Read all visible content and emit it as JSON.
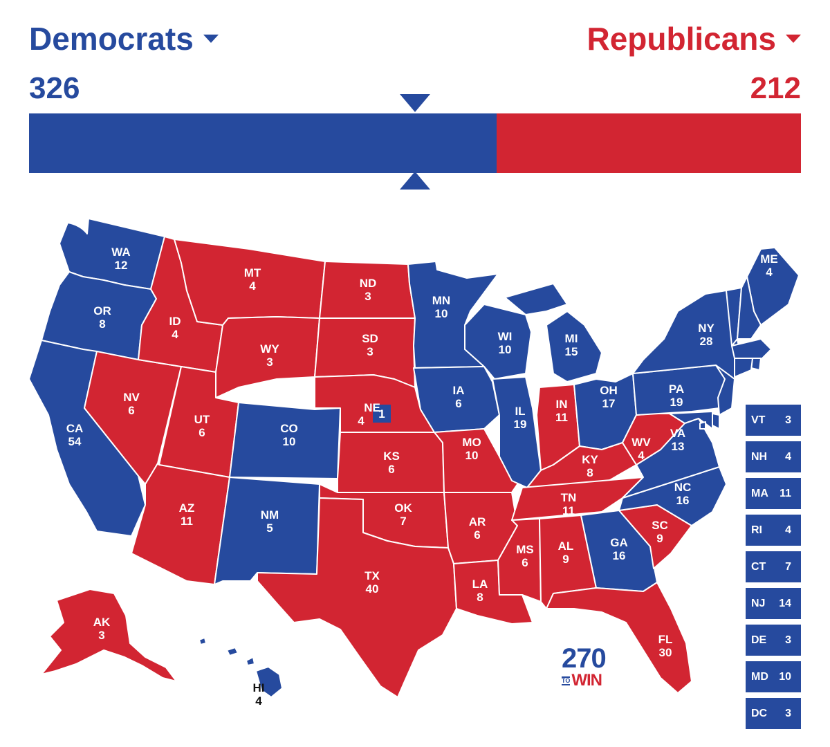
{
  "colors": {
    "dem": "#264a9e",
    "rep": "#d22532",
    "border": "#ffffff",
    "marker": "#264a9e",
    "logo_blue": "#264a9e",
    "logo_red": "#d22532"
  },
  "header": {
    "dem_name": "Democrats",
    "rep_name": "Republicans",
    "dem_total": "326",
    "rep_total": "212",
    "dem_icon": "caret-down-icon",
    "rep_icon": "caret-down-icon"
  },
  "ev_bar": {
    "dem_votes": 326,
    "rep_votes": 212,
    "total_votes": 538,
    "majority_marker": 270
  },
  "states": {
    "WA": {
      "abbr": "WA",
      "ev": "12",
      "party": "dem"
    },
    "OR": {
      "abbr": "OR",
      "ev": "8",
      "party": "dem"
    },
    "CA": {
      "abbr": "CA",
      "ev": "54",
      "party": "dem"
    },
    "NV": {
      "abbr": "NV",
      "ev": "6",
      "party": "rep"
    },
    "ID": {
      "abbr": "ID",
      "ev": "4",
      "party": "rep"
    },
    "MT": {
      "abbr": "MT",
      "ev": "4",
      "party": "rep"
    },
    "WY": {
      "abbr": "WY",
      "ev": "3",
      "party": "rep"
    },
    "UT": {
      "abbr": "UT",
      "ev": "6",
      "party": "rep"
    },
    "AZ": {
      "abbr": "AZ",
      "ev": "11",
      "party": "rep"
    },
    "CO": {
      "abbr": "CO",
      "ev": "10",
      "party": "dem"
    },
    "NM": {
      "abbr": "NM",
      "ev": "5",
      "party": "dem"
    },
    "ND": {
      "abbr": "ND",
      "ev": "3",
      "party": "rep"
    },
    "SD": {
      "abbr": "SD",
      "ev": "3",
      "party": "rep"
    },
    "NE": {
      "abbr": "NE",
      "ev": "4",
      "party": "rep",
      "district_ev": "1",
      "district_party": "dem"
    },
    "KS": {
      "abbr": "KS",
      "ev": "6",
      "party": "rep"
    },
    "OK": {
      "abbr": "OK",
      "ev": "7",
      "party": "rep"
    },
    "TX": {
      "abbr": "TX",
      "ev": "40",
      "party": "rep"
    },
    "MN": {
      "abbr": "MN",
      "ev": "10",
      "party": "dem"
    },
    "IA": {
      "abbr": "IA",
      "ev": "6",
      "party": "dem"
    },
    "MO": {
      "abbr": "MO",
      "ev": "10",
      "party": "rep"
    },
    "AR": {
      "abbr": "AR",
      "ev": "6",
      "party": "rep"
    },
    "LA": {
      "abbr": "LA",
      "ev": "8",
      "party": "rep"
    },
    "WI": {
      "abbr": "WI",
      "ev": "10",
      "party": "dem"
    },
    "IL": {
      "abbr": "IL",
      "ev": "19",
      "party": "dem"
    },
    "MI": {
      "abbr": "MI",
      "ev": "15",
      "party": "dem"
    },
    "IN": {
      "abbr": "IN",
      "ev": "11",
      "party": "rep"
    },
    "OH": {
      "abbr": "OH",
      "ev": "17",
      "party": "dem"
    },
    "KY": {
      "abbr": "KY",
      "ev": "8",
      "party": "rep"
    },
    "TN": {
      "abbr": "TN",
      "ev": "11",
      "party": "rep"
    },
    "MS": {
      "abbr": "MS",
      "ev": "6",
      "party": "rep"
    },
    "AL": {
      "abbr": "AL",
      "ev": "9",
      "party": "rep"
    },
    "GA": {
      "abbr": "GA",
      "ev": "16",
      "party": "dem"
    },
    "FL": {
      "abbr": "FL",
      "ev": "30",
      "party": "rep"
    },
    "SC": {
      "abbr": "SC",
      "ev": "9",
      "party": "rep"
    },
    "NC": {
      "abbr": "NC",
      "ev": "16",
      "party": "dem"
    },
    "VA": {
      "abbr": "VA",
      "ev": "13",
      "party": "dem"
    },
    "WV": {
      "abbr": "WV",
      "ev": "4",
      "party": "rep"
    },
    "PA": {
      "abbr": "PA",
      "ev": "19",
      "party": "dem"
    },
    "NY": {
      "abbr": "NY",
      "ev": "28",
      "party": "dem"
    },
    "ME": {
      "abbr": "ME",
      "ev": "4",
      "party": "dem"
    },
    "AK": {
      "abbr": "AK",
      "ev": "3",
      "party": "rep"
    },
    "HI": {
      "abbr": "HI",
      "ev": "4",
      "party": "dem"
    }
  },
  "small_states": [
    {
      "abbr": "VT",
      "ev": "3",
      "party": "dem"
    },
    {
      "abbr": "NH",
      "ev": "4",
      "party": "dem"
    },
    {
      "abbr": "MA",
      "ev": "11",
      "party": "dem"
    },
    {
      "abbr": "RI",
      "ev": "4",
      "party": "dem"
    },
    {
      "abbr": "CT",
      "ev": "7",
      "party": "dem"
    },
    {
      "abbr": "NJ",
      "ev": "14",
      "party": "dem"
    },
    {
      "abbr": "DE",
      "ev": "3",
      "party": "dem"
    },
    {
      "abbr": "MD",
      "ev": "10",
      "party": "dem"
    },
    {
      "abbr": "DC",
      "ev": "3",
      "party": "dem"
    }
  ],
  "logo": {
    "number": "270",
    "to": "TO",
    "win": "WIN"
  }
}
